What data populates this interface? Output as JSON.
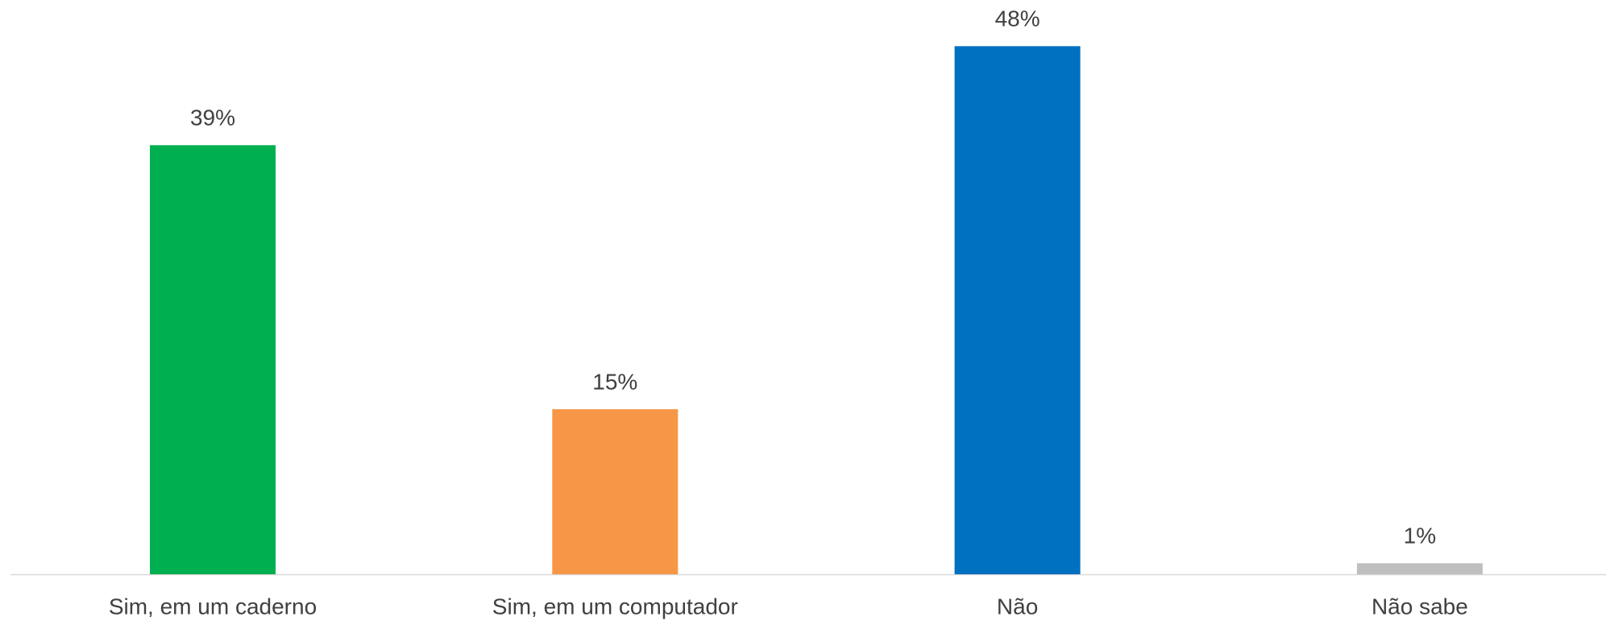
{
  "chart_data": {
    "type": "bar",
    "categories": [
      "Sim, em um caderno",
      "Sim, em um computador",
      "Não",
      "Não sabe"
    ],
    "values": [
      39,
      15,
      48,
      1
    ],
    "value_labels": [
      "39%",
      "15%",
      "48%",
      "1%"
    ],
    "colors": [
      "#00b050",
      "#f79646",
      "#0070c0",
      "#bfbfbf"
    ]
  }
}
